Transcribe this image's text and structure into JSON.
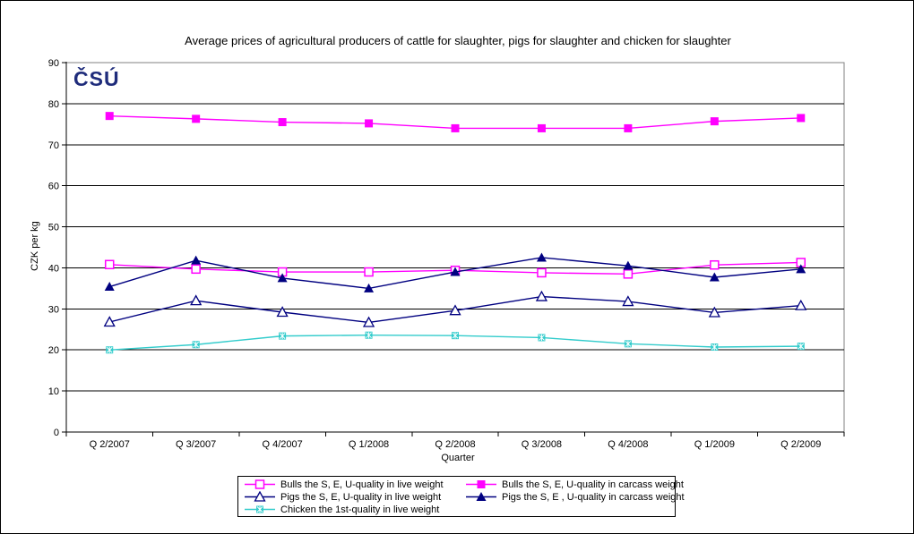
{
  "logo": "ČSÚ",
  "chart_data": {
    "type": "line",
    "title": "Average prices of agricultural producers of cattle for slaughter, pigs for slaughter and chicken for slaughter",
    "xlabel": "Quarter",
    "ylabel": "CZK per kg",
    "ylim": [
      0,
      90
    ],
    "ytick_step": 10,
    "grid": true,
    "legend_position": "bottom",
    "categories": [
      "Q 2/2007",
      "Q 3/2007",
      "Q 4/2007",
      "Q 1/2008",
      "Q 2/2008",
      "Q 3/2008",
      "Q 4/2008",
      "Q 1/2009",
      "Q 2/2009"
    ],
    "series": [
      {
        "name": "Bulls the S, E, U-quality in live weight",
        "color": "#FF00FF",
        "marker": "open-square",
        "values": [
          40.8,
          39.7,
          39.0,
          39.0,
          39.4,
          38.8,
          38.5,
          40.7,
          41.3
        ]
      },
      {
        "name": "Bulls the S, E, U-quality in carcass weight",
        "color": "#FF00FF",
        "marker": "filled-square",
        "values": [
          77.0,
          76.3,
          75.5,
          75.2,
          74.0,
          74.0,
          74.0,
          75.7,
          76.5
        ]
      },
      {
        "name": "Pigs the S, E, U-quality in live weight",
        "color": "#000080",
        "marker": "open-triangle",
        "values": [
          26.8,
          32.0,
          29.2,
          26.7,
          29.6,
          33.0,
          31.8,
          29.1,
          30.8
        ]
      },
      {
        "name": "Pigs the S, E , U-quality in carcass weight",
        "color": "#000080",
        "marker": "filled-triangle",
        "values": [
          35.4,
          41.8,
          37.5,
          35.0,
          39.0,
          42.5,
          40.5,
          37.7,
          39.7
        ]
      },
      {
        "name": "Chicken the 1st-quality in live weight",
        "color": "#33CCCC",
        "marker": "x-square",
        "values": [
          20.0,
          21.3,
          23.4,
          23.6,
          23.5,
          23.0,
          21.5,
          20.7,
          20.9
        ]
      }
    ]
  }
}
